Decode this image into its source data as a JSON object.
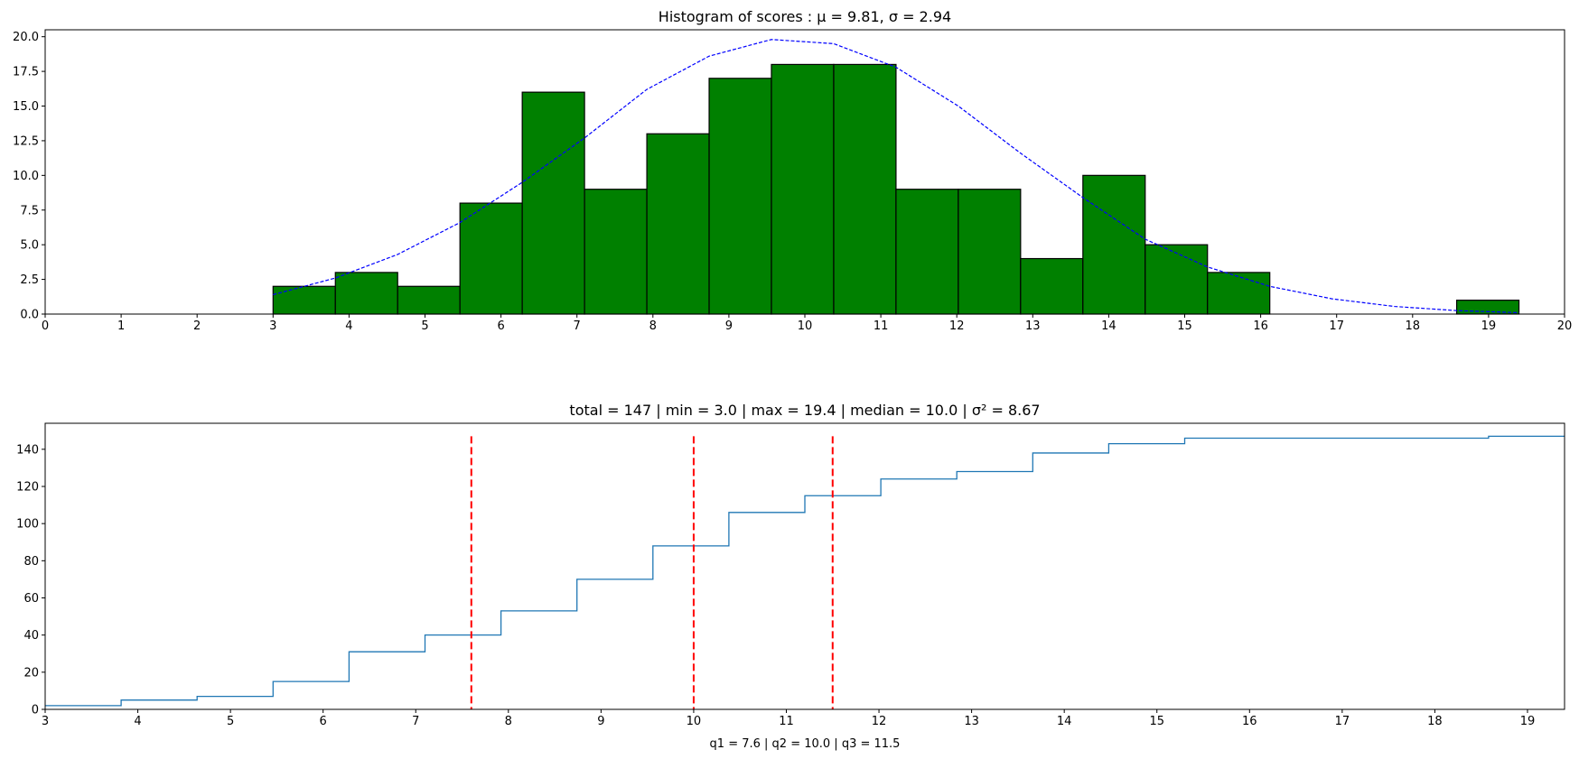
{
  "chart_data": [
    {
      "type": "bar",
      "title": "Histogram of scores : μ = 9.81,  σ = 2.94",
      "xlabel": "",
      "ylabel": "",
      "xlim": [
        0,
        20
      ],
      "ylim": [
        0,
        20.5
      ],
      "x_ticks": [
        "0",
        "1",
        "2",
        "3",
        "4",
        "5",
        "6",
        "7",
        "8",
        "9",
        "10",
        "11",
        "12",
        "13",
        "14",
        "15",
        "16",
        "17",
        "18",
        "19",
        "20"
      ],
      "y_ticks": [
        "0.0",
        "2.5",
        "5.0",
        "7.5",
        "10.0",
        "12.5",
        "15.0",
        "17.5",
        "20.0"
      ],
      "bar_color": "#008000",
      "bar_edge_color": "#000000",
      "bins": [
        {
          "x0": 3.0,
          "x1": 3.82,
          "count": 2
        },
        {
          "x0": 3.82,
          "x1": 4.64,
          "count": 3
        },
        {
          "x0": 4.64,
          "x1": 5.46,
          "count": 2
        },
        {
          "x0": 5.46,
          "x1": 6.28,
          "count": 8
        },
        {
          "x0": 6.28,
          "x1": 7.1,
          "count": 16
        },
        {
          "x0": 7.1,
          "x1": 7.92,
          "count": 9
        },
        {
          "x0": 7.92,
          "x1": 8.74,
          "count": 13
        },
        {
          "x0": 8.74,
          "x1": 9.56,
          "count": 17
        },
        {
          "x0": 9.56,
          "x1": 10.38,
          "count": 18
        },
        {
          "x0": 10.38,
          "x1": 11.2,
          "count": 18
        },
        {
          "x0": 11.2,
          "x1": 12.02,
          "count": 9
        },
        {
          "x0": 12.02,
          "x1": 12.84,
          "count": 9
        },
        {
          "x0": 12.84,
          "x1": 13.66,
          "count": 4
        },
        {
          "x0": 13.66,
          "x1": 14.48,
          "count": 10
        },
        {
          "x0": 14.48,
          "x1": 15.3,
          "count": 5
        },
        {
          "x0": 15.3,
          "x1": 16.12,
          "count": 3
        },
        {
          "x0": 18.58,
          "x1": 19.4,
          "count": 1
        }
      ],
      "fit_curve": {
        "color": "#0000ff",
        "style": "dashed",
        "points": [
          [
            3.0,
            1.4
          ],
          [
            3.82,
            2.6
          ],
          [
            4.64,
            4.3
          ],
          [
            5.46,
            6.6
          ],
          [
            6.28,
            9.5
          ],
          [
            7.1,
            12.7
          ],
          [
            7.92,
            16.2
          ],
          [
            8.74,
            18.6
          ],
          [
            9.56,
            19.8
          ],
          [
            10.38,
            19.5
          ],
          [
            11.2,
            17.8
          ],
          [
            12.02,
            15.0
          ],
          [
            12.84,
            11.6
          ],
          [
            13.66,
            8.4
          ],
          [
            14.48,
            5.4
          ],
          [
            15.3,
            3.4
          ],
          [
            16.12,
            2.0
          ],
          [
            16.94,
            1.1
          ],
          [
            17.76,
            0.55
          ],
          [
            18.58,
            0.25
          ],
          [
            19.4,
            0.1
          ]
        ]
      }
    },
    {
      "type": "line",
      "title": "total = 147 | min = 3.0 | max = 19.4 | median = 10.0 | σ² = 8.67",
      "xlabel": "q1 = 7.6 | q2 = 10.0 | q3 = 11.5",
      "ylabel": "",
      "xlim": [
        3.0,
        19.4
      ],
      "ylim": [
        0,
        154
      ],
      "x_ticks": [
        "3",
        "4",
        "5",
        "6",
        "7",
        "8",
        "9",
        "10",
        "11",
        "12",
        "13",
        "14",
        "15",
        "16",
        "17",
        "18",
        "19"
      ],
      "y_ticks": [
        "0",
        "20",
        "40",
        "60",
        "80",
        "100",
        "120",
        "140"
      ],
      "line_color": "#1f77b4",
      "step_points": [
        [
          3.0,
          2
        ],
        [
          3.82,
          5
        ],
        [
          4.64,
          7
        ],
        [
          5.46,
          15
        ],
        [
          6.28,
          31
        ],
        [
          7.1,
          40
        ],
        [
          7.92,
          53
        ],
        [
          8.74,
          70
        ],
        [
          9.56,
          88
        ],
        [
          10.38,
          106
        ],
        [
          11.2,
          115
        ],
        [
          12.02,
          124
        ],
        [
          12.84,
          128
        ],
        [
          13.66,
          138
        ],
        [
          14.48,
          143
        ],
        [
          15.3,
          146
        ],
        [
          18.58,
          147
        ],
        [
          19.4,
          147
        ]
      ],
      "quartile_lines": {
        "color": "#ff0000",
        "style": "dashed",
        "x": [
          7.6,
          10.0,
          11.5
        ],
        "y_top": 147
      }
    }
  ]
}
